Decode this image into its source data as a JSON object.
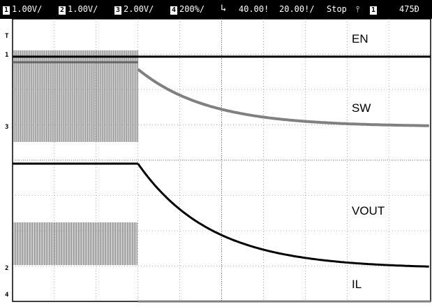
{
  "topbar": {
    "ch1_num": "1",
    "ch1_scale": "1.00V/",
    "ch2_num": "2",
    "ch2_scale": "1.00V/",
    "ch3_num": "3",
    "ch3_scale": "2.00V/",
    "ch4_num": "4",
    "ch4_scale": "200%/",
    "trigger_icon": "falling-edge-icon",
    "delay": "40.00!",
    "timebase": "20.00!/",
    "run_state": "Stop",
    "trigger_mode_icon": "trigger-slope-icon",
    "trigger_source_num": "1",
    "trigger_level": "475Ð"
  },
  "traces": {
    "en_label": "EN",
    "sw_label": "SW",
    "vout_label": "VOUT",
    "il_label": "IL"
  },
  "markers": {
    "trigger_marker": "T",
    "ch1_marker": "1",
    "ch3_marker": "3",
    "ch2_marker": "2",
    "ch4_marker": "4"
  },
  "colors": {
    "background": "#ffffff",
    "grid": "#777777",
    "en_trace": "#000000",
    "sw_trace": "#808080",
    "vout_trace": "#000000",
    "il_trace": "#808080"
  }
}
